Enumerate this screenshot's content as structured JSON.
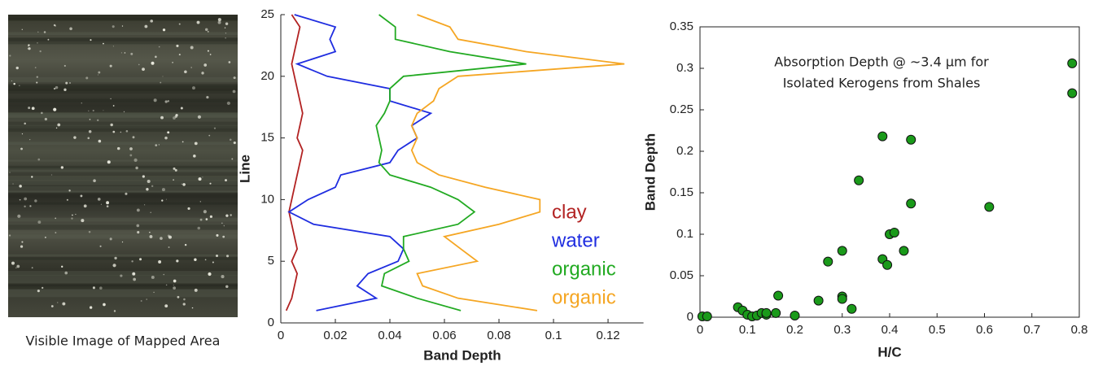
{
  "image_panel": {
    "caption": "Visible Image of Mapped Area"
  },
  "chart_data": [
    {
      "type": "line",
      "orientation": "vertical",
      "xlabel": "Band Depth",
      "ylabel": "Line",
      "y": [
        1,
        2,
        3,
        4,
        5,
        6,
        7,
        8,
        9,
        10,
        11,
        12,
        13,
        14,
        15,
        16,
        17,
        18,
        19,
        20,
        21,
        22,
        23,
        24,
        25
      ],
      "series": [
        {
          "name": "clay",
          "color": "#b22222",
          "values": [
            0.002,
            0.004,
            0.005,
            0.006,
            0.004,
            0.006,
            0.005,
            0.004,
            0.003,
            0.004,
            0.005,
            0.006,
            0.007,
            0.008,
            0.006,
            0.007,
            0.008,
            0.007,
            0.006,
            0.005,
            0.004,
            0.005,
            0.006,
            0.007,
            0.004
          ]
        },
        {
          "name": "water",
          "color": "#1f2de0",
          "values": [
            0.013,
            0.035,
            0.028,
            0.032,
            0.043,
            0.045,
            0.04,
            0.012,
            0.003,
            0.01,
            0.02,
            0.022,
            0.04,
            0.043,
            0.05,
            0.048,
            0.055,
            0.04,
            0.04,
            0.017,
            0.006,
            0.02,
            0.018,
            0.02,
            0.005
          ]
        },
        {
          "name": "organic",
          "color": "#22aa22",
          "values": [
            0.066,
            0.05,
            0.037,
            0.038,
            0.047,
            0.045,
            0.045,
            0.065,
            0.071,
            0.065,
            0.055,
            0.04,
            0.036,
            0.037,
            0.036,
            0.035,
            0.038,
            0.04,
            0.04,
            0.045,
            0.09,
            0.062,
            0.042,
            0.042,
            0.036
          ]
        },
        {
          "name": "organic",
          "color": "#f5a623",
          "values": [
            0.094,
            0.065,
            0.052,
            0.05,
            0.072,
            0.066,
            0.06,
            0.08,
            0.095,
            0.095,
            0.075,
            0.058,
            0.05,
            0.048,
            0.05,
            0.048,
            0.05,
            0.056,
            0.058,
            0.065,
            0.126,
            0.09,
            0.065,
            0.062,
            0.05
          ]
        }
      ],
      "xlim": [
        0,
        0.133
      ],
      "ylim": [
        0,
        25
      ],
      "xticks": [
        0,
        0.02,
        0.04,
        0.06,
        0.08,
        0.1,
        0.12
      ],
      "yticks": [
        0,
        5,
        10,
        15,
        20,
        25
      ]
    },
    {
      "type": "scatter",
      "annotation": [
        "Absorption Depth @ ~3.4 µm for",
        "Isolated Kerogens from Shales"
      ],
      "xlabel": "H/C",
      "ylabel": "Band Depth",
      "color": "#1a9a1a",
      "x": [
        0.005,
        0.015,
        0.08,
        0.09,
        0.1,
        0.11,
        0.12,
        0.13,
        0.14,
        0.14,
        0.16,
        0.165,
        0.2,
        0.25,
        0.27,
        0.3,
        0.3,
        0.3,
        0.32,
        0.335,
        0.385,
        0.385,
        0.395,
        0.4,
        0.41,
        0.43,
        0.445,
        0.445,
        0.61,
        0.785,
        0.785
      ],
      "values": [
        0.001,
        0.001,
        0.012,
        0.008,
        0.003,
        0.001,
        0.002,
        0.005,
        0.003,
        0.005,
        0.005,
        0.026,
        0.002,
        0.02,
        0.067,
        0.025,
        0.022,
        0.08,
        0.01,
        0.165,
        0.218,
        0.07,
        0.063,
        0.1,
        0.102,
        0.08,
        0.214,
        0.137,
        0.133,
        0.306,
        0.27
      ],
      "xlim": [
        0,
        0.8
      ],
      "ylim": [
        0,
        0.35
      ],
      "xticks": [
        0,
        0.1,
        0.2,
        0.3,
        0.4,
        0.5,
        0.6,
        0.7,
        0.8
      ],
      "yticks": [
        0,
        0.05,
        0.1,
        0.15,
        0.2,
        0.25,
        0.3,
        0.35
      ]
    }
  ]
}
